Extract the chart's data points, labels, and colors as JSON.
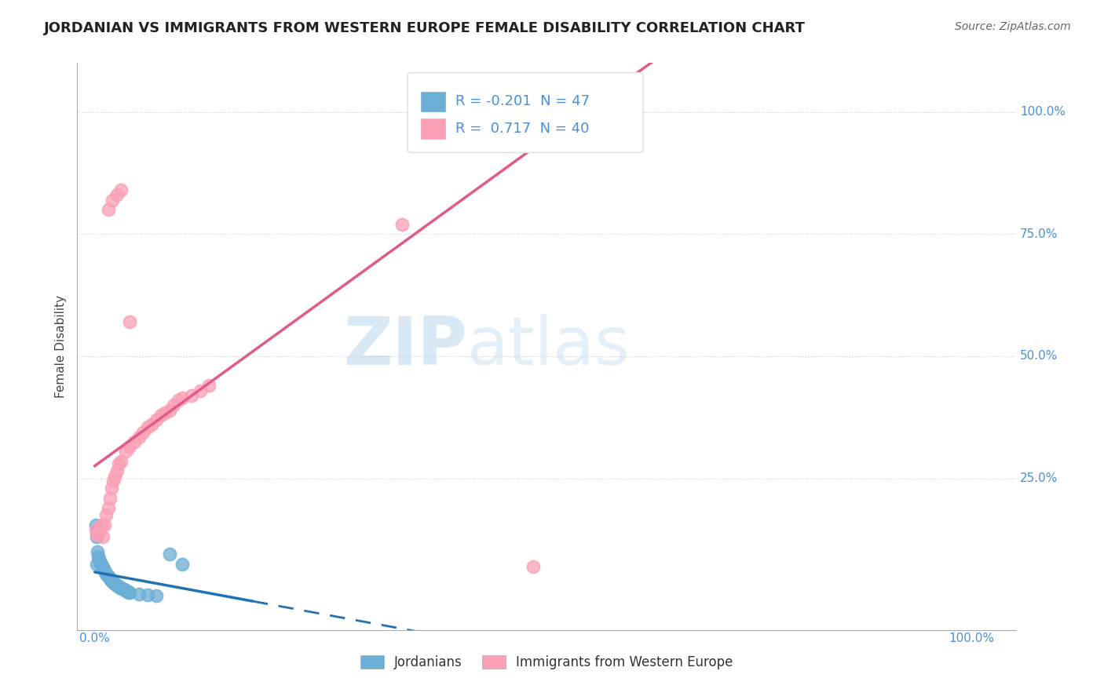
{
  "title": "JORDANIAN VS IMMIGRANTS FROM WESTERN EUROPE FEMALE DISABILITY CORRELATION CHART",
  "source": "Source: ZipAtlas.com",
  "ylabel": "Female Disability",
  "y_tick_labels": [
    "25.0%",
    "50.0%",
    "75.0%",
    "100.0%"
  ],
  "y_tick_positions": [
    0.25,
    0.5,
    0.75,
    1.0
  ],
  "watermark_zip": "ZIP",
  "watermark_atlas": "atlas",
  "legend_labels": [
    "Jordanians",
    "Immigrants from Western Europe"
  ],
  "R_jordanian": -0.201,
  "N_jordanian": 47,
  "R_western": 0.717,
  "N_western": 40,
  "jordanian_color": "#6baed6",
  "western_color": "#fa9fb5",
  "jordanian_line_color": "#2171b5",
  "western_line_color": "#e05a8a",
  "background_color": "#ffffff",
  "grid_color": "#cccccc",
  "jordanian_points": [
    [
      0.001,
      0.155
    ],
    [
      0.002,
      0.13
    ],
    [
      0.003,
      0.1
    ],
    [
      0.004,
      0.09
    ],
    [
      0.005,
      0.085
    ],
    [
      0.006,
      0.08
    ],
    [
      0.007,
      0.075
    ],
    [
      0.008,
      0.072
    ],
    [
      0.009,
      0.068
    ],
    [
      0.01,
      0.065
    ],
    [
      0.011,
      0.062
    ],
    [
      0.012,
      0.058
    ],
    [
      0.013,
      0.055
    ],
    [
      0.014,
      0.052
    ],
    [
      0.015,
      0.05
    ],
    [
      0.016,
      0.048
    ],
    [
      0.017,
      0.045
    ],
    [
      0.018,
      0.043
    ],
    [
      0.019,
      0.041
    ],
    [
      0.02,
      0.039
    ],
    [
      0.021,
      0.037
    ],
    [
      0.022,
      0.036
    ],
    [
      0.023,
      0.034
    ],
    [
      0.024,
      0.033
    ],
    [
      0.025,
      0.031
    ],
    [
      0.026,
      0.03
    ],
    [
      0.027,
      0.029
    ],
    [
      0.028,
      0.028
    ],
    [
      0.029,
      0.027
    ],
    [
      0.03,
      0.026
    ],
    [
      0.031,
      0.025
    ],
    [
      0.032,
      0.024
    ],
    [
      0.033,
      0.023
    ],
    [
      0.034,
      0.022
    ],
    [
      0.035,
      0.021
    ],
    [
      0.036,
      0.02
    ],
    [
      0.037,
      0.019
    ],
    [
      0.038,
      0.018
    ],
    [
      0.039,
      0.017
    ],
    [
      0.04,
      0.016
    ],
    [
      0.05,
      0.014
    ],
    [
      0.06,
      0.012
    ],
    [
      0.07,
      0.011
    ],
    [
      0.085,
      0.095
    ],
    [
      0.1,
      0.075
    ],
    [
      0.003,
      0.145
    ],
    [
      0.002,
      0.075
    ]
  ],
  "western_points": [
    [
      0.005,
      0.14
    ],
    [
      0.007,
      0.155
    ],
    [
      0.009,
      0.13
    ],
    [
      0.011,
      0.155
    ],
    [
      0.013,
      0.175
    ],
    [
      0.015,
      0.19
    ],
    [
      0.017,
      0.21
    ],
    [
      0.019,
      0.23
    ],
    [
      0.021,
      0.245
    ],
    [
      0.023,
      0.255
    ],
    [
      0.025,
      0.265
    ],
    [
      0.027,
      0.28
    ],
    [
      0.03,
      0.285
    ],
    [
      0.035,
      0.305
    ],
    [
      0.04,
      0.315
    ],
    [
      0.045,
      0.325
    ],
    [
      0.05,
      0.335
    ],
    [
      0.055,
      0.345
    ],
    [
      0.06,
      0.355
    ],
    [
      0.065,
      0.36
    ],
    [
      0.07,
      0.37
    ],
    [
      0.075,
      0.38
    ],
    [
      0.08,
      0.385
    ],
    [
      0.085,
      0.39
    ],
    [
      0.09,
      0.4
    ],
    [
      0.095,
      0.41
    ],
    [
      0.1,
      0.415
    ],
    [
      0.11,
      0.42
    ],
    [
      0.12,
      0.43
    ],
    [
      0.13,
      0.44
    ],
    [
      0.015,
      0.8
    ],
    [
      0.02,
      0.82
    ],
    [
      0.025,
      0.83
    ],
    [
      0.03,
      0.84
    ],
    [
      0.04,
      0.57
    ],
    [
      0.35,
      0.77
    ],
    [
      0.5,
      0.07
    ],
    [
      0.6,
      1.0
    ],
    [
      0.001,
      0.145
    ],
    [
      0.002,
      0.135
    ]
  ]
}
